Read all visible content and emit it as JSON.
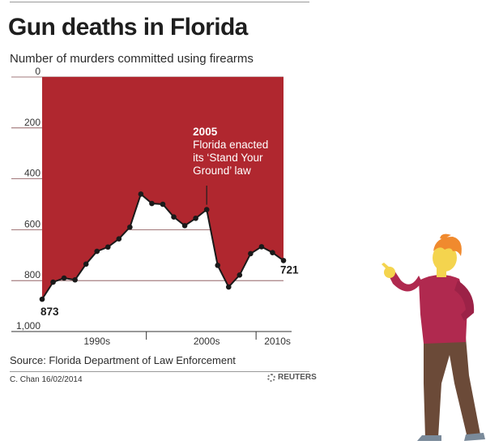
{
  "chart_data": {
    "type": "area",
    "title": "Gun deaths in Florida",
    "subtitle": "Number of murders committed using firearms",
    "x": [
      1990,
      1991,
      1992,
      1993,
      1994,
      1995,
      1996,
      1997,
      1998,
      1999,
      2000,
      2001,
      2002,
      2003,
      2004,
      2005,
      2006,
      2007,
      2008,
      2009,
      2010,
      2011,
      2012
    ],
    "values": [
      873,
      806,
      790,
      797,
      735,
      685,
      668,
      636,
      590,
      460,
      497,
      500,
      550,
      584,
      555,
      521,
      740,
      825,
      778,
      694,
      667,
      690,
      721
    ],
    "y_ticks": [
      "0",
      "200",
      "400",
      "600",
      "800",
      "1,000"
    ],
    "ylim": [
      0,
      1000
    ],
    "y_inverted": true,
    "x_decades": [
      "1990s",
      "2000s",
      "2010s"
    ],
    "annotation": {
      "year_label": "2005",
      "text_lines": [
        "Florida enacted",
        "its ‘Stand Your",
        "Ground’ law"
      ]
    },
    "start_label": "873",
    "end_label": "721",
    "grid": true,
    "source": "Source: Florida Department of Law Enforcement"
  },
  "footer": {
    "credit": "C. Chan  16/02/2014",
    "agency": "REUTERS"
  },
  "colors": {
    "area": "#b0272f",
    "line": "#1a1a1a",
    "grid": "#5a1015",
    "text": "#222222"
  }
}
